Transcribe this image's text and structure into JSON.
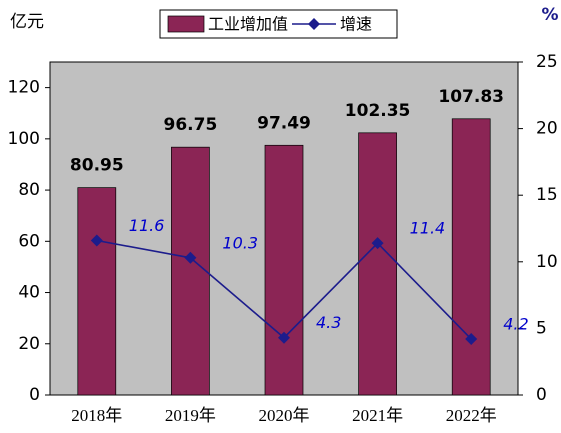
{
  "chart_data": {
    "type": "combo",
    "y_label": "亿元",
    "y2_label": "%",
    "categories": [
      "2018年",
      "2019年",
      "2020年",
      "2021年",
      "2022年"
    ],
    "series": [
      {
        "name": "工业增加值",
        "type": "bar",
        "color": "#8b2555",
        "values": [
          80.95,
          96.75,
          97.49,
          102.35,
          107.83
        ]
      },
      {
        "name": "增速",
        "type": "line",
        "color": "#1c1c8c",
        "axis": "y2",
        "values": [
          11.6,
          10.3,
          4.3,
          11.4,
          4.2
        ]
      }
    ],
    "ylim": [
      0,
      130
    ],
    "yticks": [
      0,
      20,
      40,
      60,
      80,
      100,
      120
    ],
    "y2lim": [
      0,
      25
    ],
    "y2ticks": [
      0,
      5,
      10,
      15,
      20,
      25
    ],
    "grid": false,
    "plot_background": "#c0c0c0"
  }
}
